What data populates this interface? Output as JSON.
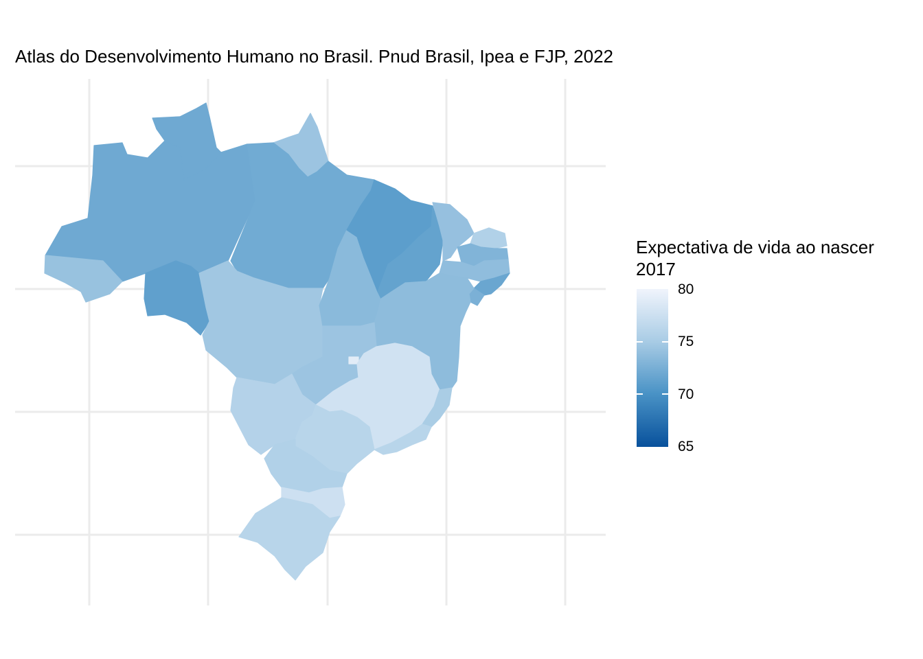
{
  "title": "Atlas do Desenvolvimento Humano no Brasil. Pnud Brasil, Ipea e FJP, 2022",
  "legend": {
    "title_line1": "Expectativa de vida ao nascer",
    "title_line2": "2017",
    "min": 65,
    "max": 80,
    "ticks": [
      "80",
      "75",
      "70",
      "65"
    ],
    "color_low": "#08519c",
    "color_high": "#f0f4fc"
  },
  "map_data": {
    "type": "choropleth",
    "variable": "Expectativa de vida ao nascer 2017",
    "regions": [
      {
        "name": "Amazonas",
        "value": 71.9
      },
      {
        "name": "Roraima",
        "value": 71.9
      },
      {
        "name": "Amapá",
        "value": 74.2
      },
      {
        "name": "Pará",
        "value": 72.0
      },
      {
        "name": "Acre",
        "value": 74.0
      },
      {
        "name": "Rondônia",
        "value": 71.1
      },
      {
        "name": "Mato Grosso",
        "value": 74.5
      },
      {
        "name": "Tocantins",
        "value": 73.3
      },
      {
        "name": "Maranhão",
        "value": 70.9
      },
      {
        "name": "Piauí",
        "value": 71.3
      },
      {
        "name": "Ceará",
        "value": 73.9
      },
      {
        "name": "Rio Grande do Norte",
        "value": 75.5
      },
      {
        "name": "Paraíba",
        "value": 72.8
      },
      {
        "name": "Pernambuco",
        "value": 73.6
      },
      {
        "name": "Alagoas",
        "value": 71.6
      },
      {
        "name": "Sergipe",
        "value": 72.5
      },
      {
        "name": "Bahia",
        "value": 73.5
      },
      {
        "name": "Goiás",
        "value": 74.2
      },
      {
        "name": "Distrito Federal",
        "value": 79.0
      },
      {
        "name": "Mato Grosso do Sul",
        "value": 75.7
      },
      {
        "name": "Minas Gerais",
        "value": 77.7
      },
      {
        "name": "Espírito Santo",
        "value": 75.0
      },
      {
        "name": "Rio de Janeiro",
        "value": 76.0
      },
      {
        "name": "São Paulo",
        "value": 76.0
      },
      {
        "name": "Paraná",
        "value": 75.5
      },
      {
        "name": "Santa Catarina",
        "value": 77.5
      },
      {
        "name": "Rio Grande do Sul",
        "value": 76.0
      }
    ]
  }
}
